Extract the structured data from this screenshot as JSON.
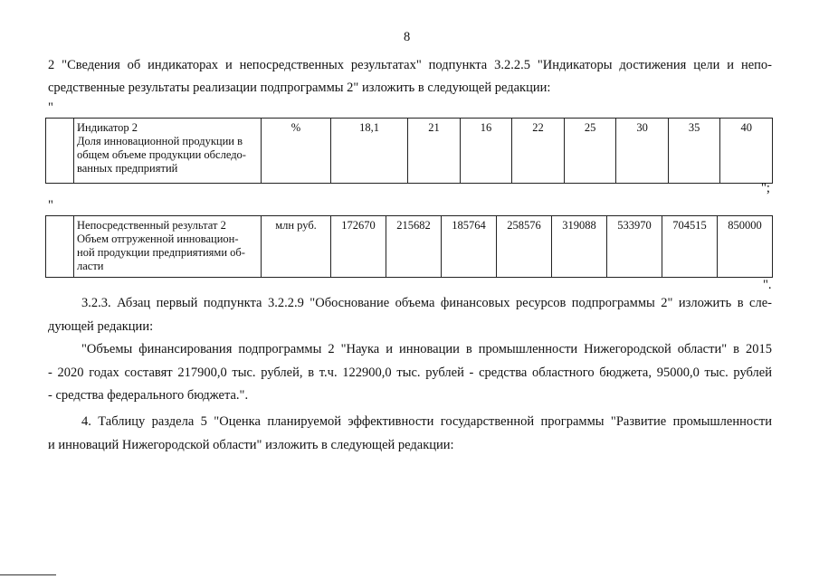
{
  "page_number": "8",
  "paragraph_1": {
    "lines": [
      "2 \"Сведения об индикаторах и непосредственных результатах\" подпункта 3.2.2.5 \"Индикаторы достижения цели и непо-",
      "средственные результаты реализации подпрограммы 2\" изложить в следующей редакции:"
    ]
  },
  "quote_open_1": "\"",
  "table_1": {
    "rows": [
      {
        "name_lines": [
          "Индикатор 2",
          "Доля инновационной продукции в",
          "общем объеме продукции обследо-",
          "ванных предприятий"
        ],
        "unit": "%",
        "values": [
          "18,1",
          "21",
          "16",
          "22",
          "25",
          "30",
          "35",
          "40"
        ]
      }
    ]
  },
  "quote_close_1": "\";",
  "quote_open_2": "\"",
  "table_2": {
    "rows": [
      {
        "name_lines": [
          "Непосредственный результат 2",
          "Объем отгруженной инновацион-",
          "ной продукции предприятиями об-",
          "ласти"
        ],
        "unit": "млн руб.",
        "values": [
          "172670",
          "215682",
          "185764",
          "258576",
          "319088",
          "533970",
          "704515",
          "850000"
        ]
      }
    ]
  },
  "quote_close_2": "\".",
  "paragraphs": [
    {
      "lines": [
        "3.2.3. Абзац первый подпункта 3.2.2.9 \"Обоснование объема финансовых ресурсов подпрограммы 2\" изложить в сле-",
        "дующей редакции:"
      ]
    },
    {
      "lines": [
        "\"Объемы финансирования подпрограммы 2 \"Наука и инновации в промышленности Нижегородской области\" в 2015",
        "- 2020 годах составят 217900,0 тыс. рублей, в т.ч. 122900,0 тыс. рублей - средства областного бюджета, 95000,0 тыс. рублей",
        "- средства федерального бюджета.\"."
      ]
    },
    {
      "lines": [
        "4. Таблицу раздела 5 \"Оценка планируемой эффективности государственной программы \"Развитие промышленности",
        "и инноваций Нижегородской области\" изложить в следующей редакции:"
      ]
    }
  ]
}
